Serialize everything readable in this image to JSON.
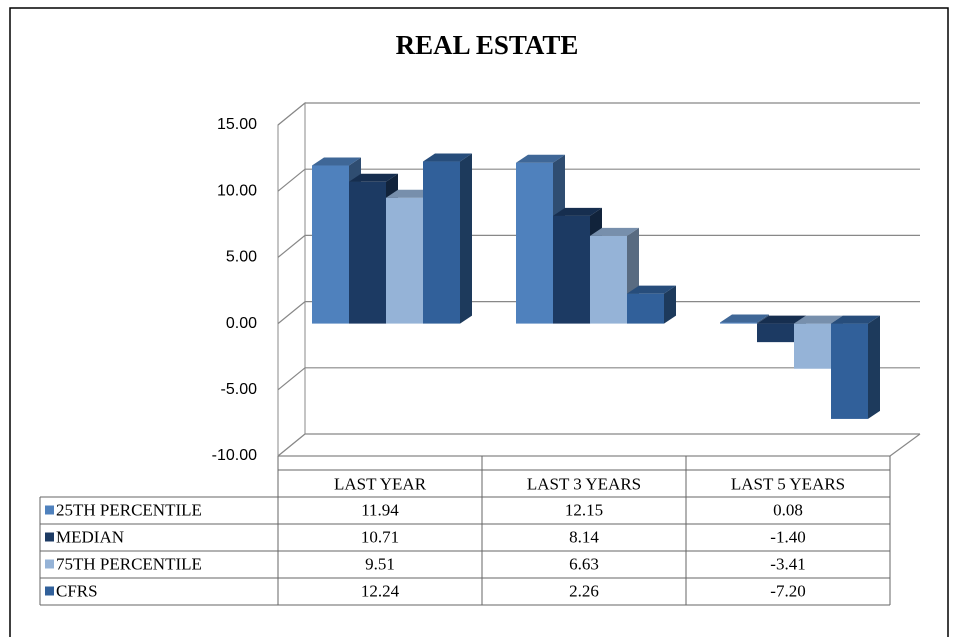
{
  "chart_data": {
    "type": "bar3d",
    "title": "REAL ESTATE",
    "categories": [
      "LAST YEAR",
      "LAST 3 YEARS",
      "LAST 5 YEARS"
    ],
    "series": [
      {
        "name": "25TH PERCENTILE",
        "color": "#4f81bd",
        "values": [
          11.94,
          12.15,
          0.08
        ],
        "value_labels": [
          "11.94",
          "12.15",
          "0.08"
        ]
      },
      {
        "name": "MEDIAN",
        "color": "#1c3a63",
        "values": [
          10.71,
          8.14,
          -1.4
        ],
        "value_labels": [
          "10.71",
          "8.14",
          "-1.40"
        ]
      },
      {
        "name": "75TH PERCENTILE",
        "color": "#95b3d7",
        "values": [
          9.51,
          6.63,
          -3.41
        ],
        "value_labels": [
          "9.51",
          "6.63",
          "-3.41"
        ]
      },
      {
        "name": "CFRS",
        "color": "#31609a",
        "values": [
          12.24,
          2.26,
          -7.2
        ],
        "value_labels": [
          "12.24",
          "2.26",
          "-7.20"
        ]
      }
    ],
    "ylim": [
      -10,
      15
    ],
    "yticks": [
      {
        "value": -10,
        "label": "-10.00"
      },
      {
        "value": -5,
        "label": "-5.00"
      },
      {
        "value": 0,
        "label": "0.00"
      },
      {
        "value": 5,
        "label": "5.00"
      },
      {
        "value": 10,
        "label": "10.00"
      },
      {
        "value": 15,
        "label": "15.00"
      }
    ],
    "grid": true,
    "legend": "table"
  }
}
